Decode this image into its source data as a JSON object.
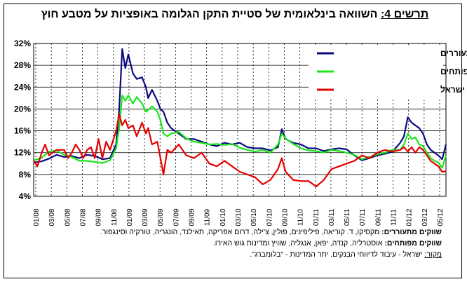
{
  "figure": {
    "label": "תרשים 4:",
    "title": "השוואה בינלאומית של סטיית התקן הגלומה באופציות על מטבע חוץ"
  },
  "chart_data": {
    "type": "line",
    "title": "השוואה בינלאומית של סטיית התקן הגלומה באופציות על מטבע חוץ",
    "ylim": [
      4,
      32
    ],
    "y_ticks": [
      "4%",
      "8%",
      "12%",
      "16%",
      "20%",
      "24%",
      "28%",
      "32%"
    ],
    "x_ticks": [
      "01/08",
      "03/08",
      "05/08",
      "07/08",
      "09/08",
      "11/08",
      "01/09",
      "03/09",
      "05/09",
      "07/09",
      "09/09",
      "11/09",
      "01/10",
      "03/10",
      "05/10",
      "07/10",
      "09/10",
      "11/10",
      "01/11",
      "03/11",
      "05/11",
      "07/11",
      "09/11",
      "11/11",
      "01/12",
      "03/12",
      "05/12"
    ],
    "x_range": [
      0,
      54
    ],
    "grid": "horizontal solid, vertical dashed",
    "legend_position": "top-right",
    "series": [
      {
        "name": "ממוצע שווקים מתעוררים",
        "color": "#0a0a80",
        "points": [
          [
            0,
            10.2
          ],
          [
            1,
            10.4
          ],
          [
            2,
            10.9
          ],
          [
            3,
            11.6
          ],
          [
            4,
            11.2
          ],
          [
            5,
            11.4
          ],
          [
            6,
            11.0
          ],
          [
            7,
            11.6
          ],
          [
            8,
            11.4
          ],
          [
            9,
            10.8
          ],
          [
            10,
            11.0
          ],
          [
            10.8,
            13.5
          ],
          [
            11.2,
            20.0
          ],
          [
            11.6,
            31.0
          ],
          [
            12.0,
            27.5
          ],
          [
            12.4,
            30.0
          ],
          [
            13.0,
            26.5
          ],
          [
            13.5,
            25.5
          ],
          [
            14.2,
            25.8
          ],
          [
            14.7,
            24.0
          ],
          [
            15.0,
            22.0
          ],
          [
            15.5,
            23.5
          ],
          [
            16.2,
            21.5
          ],
          [
            16.6,
            20.0
          ],
          [
            17.0,
            19.5
          ],
          [
            17.5,
            17.5
          ],
          [
            18.0,
            16.5
          ],
          [
            19.0,
            15.5
          ],
          [
            20.0,
            14.5
          ],
          [
            21.0,
            14.5
          ],
          [
            22.0,
            14.0
          ],
          [
            23.0,
            13.5
          ],
          [
            24.0,
            13.2
          ],
          [
            25.0,
            13.8
          ],
          [
            26.0,
            13.5
          ],
          [
            27.0,
            13.8
          ],
          [
            28.0,
            13.0
          ],
          [
            29.0,
            12.8
          ],
          [
            30.0,
            12.8
          ],
          [
            31.0,
            12.4
          ],
          [
            32.0,
            13.0
          ],
          [
            32.5,
            16.3
          ],
          [
            33.0,
            14.5
          ],
          [
            34.0,
            13.8
          ],
          [
            35.0,
            13.5
          ],
          [
            36.0,
            12.8
          ],
          [
            37.0,
            12.8
          ],
          [
            38.0,
            12.3
          ],
          [
            39.0,
            12.6
          ],
          [
            40.0,
            12.8
          ],
          [
            41.0,
            12.6
          ],
          [
            42.0,
            11.5
          ],
          [
            43.0,
            10.6
          ],
          [
            44.0,
            11.0
          ],
          [
            45.0,
            11.5
          ],
          [
            46.0,
            11.8
          ],
          [
            47.0,
            12.2
          ],
          [
            48.0,
            13.8
          ],
          [
            48.5,
            15.0
          ],
          [
            49.0,
            18.5
          ],
          [
            49.5,
            17.5
          ],
          [
            50.0,
            17.0
          ],
          [
            50.5,
            16.5
          ],
          [
            51.0,
            15.5
          ],
          [
            51.5,
            13.5
          ],
          [
            52.0,
            12.5
          ],
          [
            52.5,
            12.0
          ],
          [
            53.0,
            11.5
          ],
          [
            53.5,
            10.8
          ],
          [
            54.0,
            13.5
          ]
        ]
      },
      {
        "name": "ממוצע שווקים מפותחים",
        "color": "#19e619",
        "points": [
          [
            0,
            10.6
          ],
          [
            1,
            11.0
          ],
          [
            2,
            12.2
          ],
          [
            3,
            12.4
          ],
          [
            4,
            11.6
          ],
          [
            5,
            11.2
          ],
          [
            6,
            10.5
          ],
          [
            7,
            10.5
          ],
          [
            8,
            10.3
          ],
          [
            9,
            10.1
          ],
          [
            10,
            10.6
          ],
          [
            10.8,
            12.8
          ],
          [
            11.2,
            16.5
          ],
          [
            11.6,
            22.5
          ],
          [
            12.0,
            21.5
          ],
          [
            12.4,
            22.5
          ],
          [
            13.0,
            21.0
          ],
          [
            13.5,
            22.2
          ],
          [
            14.2,
            21.0
          ],
          [
            14.7,
            19.5
          ],
          [
            15.0,
            19.8
          ],
          [
            15.5,
            20.5
          ],
          [
            16.2,
            19.5
          ],
          [
            16.6,
            18.0
          ],
          [
            17.0,
            15.5
          ],
          [
            17.5,
            15.0
          ],
          [
            18.0,
            15.5
          ],
          [
            19.0,
            15.8
          ],
          [
            20.0,
            14.6
          ],
          [
            21.0,
            14.0
          ],
          [
            22.0,
            13.8
          ],
          [
            23.0,
            13.5
          ],
          [
            24.0,
            13.6
          ],
          [
            25.0,
            13.4
          ],
          [
            26.0,
            13.6
          ],
          [
            27.0,
            12.9
          ],
          [
            28.0,
            12.5
          ],
          [
            29.0,
            12.2
          ],
          [
            30.0,
            12.5
          ],
          [
            31.0,
            12.0
          ],
          [
            32.0,
            13.5
          ],
          [
            32.5,
            15.5
          ],
          [
            33.0,
            14.6
          ],
          [
            34.0,
            13.6
          ],
          [
            35.0,
            12.8
          ],
          [
            36.0,
            12.4
          ],
          [
            37.0,
            12.3
          ],
          [
            38.0,
            12.0
          ],
          [
            39.0,
            12.5
          ],
          [
            40.0,
            12.3
          ],
          [
            41.0,
            12.0
          ],
          [
            42.0,
            11.6
          ],
          [
            43.0,
            10.8
          ],
          [
            44.0,
            11.2
          ],
          [
            45.0,
            11.7
          ],
          [
            46.0,
            12.0
          ],
          [
            47.0,
            12.5
          ],
          [
            48.0,
            12.5
          ],
          [
            48.5,
            13.5
          ],
          [
            49.0,
            15.5
          ],
          [
            49.5,
            14.5
          ],
          [
            50.0,
            14.8
          ],
          [
            50.5,
            13.5
          ],
          [
            51.0,
            13.2
          ],
          [
            51.5,
            12.0
          ],
          [
            52.0,
            11.0
          ],
          [
            52.5,
            10.5
          ],
          [
            53.0,
            10.2
          ],
          [
            53.5,
            9.2
          ],
          [
            54.0,
            11.5
          ]
        ]
      },
      {
        "name": "סת\"ג ישראל",
        "color": "#e60000",
        "points": [
          [
            0,
            10.5
          ],
          [
            0.5,
            9.5
          ],
          [
            1,
            11.8
          ],
          [
            1.5,
            13.5
          ],
          [
            2,
            11.5
          ],
          [
            2.5,
            12.0
          ],
          [
            3,
            12.5
          ],
          [
            4,
            12.5
          ],
          [
            4.5,
            11.0
          ],
          [
            5,
            12.0
          ],
          [
            5.5,
            13.5
          ],
          [
            6,
            12.5
          ],
          [
            6.5,
            11.0
          ],
          [
            7,
            12.5
          ],
          [
            7.5,
            13.0
          ],
          [
            8,
            11.0
          ],
          [
            8.5,
            14.5
          ],
          [
            9,
            11.0
          ],
          [
            9.5,
            14.0
          ],
          [
            10,
            12.5
          ],
          [
            10.8,
            16.0
          ],
          [
            11.2,
            19.0
          ],
          [
            11.6,
            17.0
          ],
          [
            12.0,
            18.0
          ],
          [
            12.4,
            16.5
          ],
          [
            13.0,
            17.0
          ],
          [
            13.5,
            15.0
          ],
          [
            14.2,
            17.5
          ],
          [
            14.7,
            15.5
          ],
          [
            15.0,
            16.5
          ],
          [
            15.5,
            13.5
          ],
          [
            16.2,
            14.0
          ],
          [
            16.6,
            11.0
          ],
          [
            17.0,
            8.0
          ],
          [
            17.5,
            12.5
          ],
          [
            18.0,
            12.0
          ],
          [
            19.0,
            13.5
          ],
          [
            20.0,
            11.5
          ],
          [
            21.0,
            11.0
          ],
          [
            22.0,
            12.0
          ],
          [
            23.0,
            10.0
          ],
          [
            24.0,
            9.5
          ],
          [
            25.0,
            10.5
          ],
          [
            26.0,
            9.5
          ],
          [
            27.0,
            8.5
          ],
          [
            28.0,
            8.0
          ],
          [
            29.0,
            7.5
          ],
          [
            30.0,
            6.2
          ],
          [
            31.0,
            7.0
          ],
          [
            32.0,
            9.0
          ],
          [
            32.5,
            11.0
          ],
          [
            33.0,
            8.5
          ],
          [
            34.0,
            7.0
          ],
          [
            35.0,
            6.8
          ],
          [
            36.0,
            6.8
          ],
          [
            37.0,
            5.8
          ],
          [
            38.0,
            7.0
          ],
          [
            39.0,
            9.0
          ],
          [
            40.0,
            9.5
          ],
          [
            41.0,
            10.0
          ],
          [
            42.0,
            10.5
          ],
          [
            43.0,
            11.5
          ],
          [
            44.0,
            11.0
          ],
          [
            45.0,
            12.0
          ],
          [
            46.0,
            12.5
          ],
          [
            47.0,
            12.2
          ],
          [
            48.0,
            12.5
          ],
          [
            48.5,
            13.0
          ],
          [
            49.0,
            12.2
          ],
          [
            49.5,
            13.0
          ],
          [
            50.0,
            12.0
          ],
          [
            50.5,
            13.0
          ],
          [
            51.0,
            12.5
          ],
          [
            51.5,
            11.5
          ],
          [
            52.0,
            10.5
          ],
          [
            52.5,
            10.0
          ],
          [
            53.0,
            9.5
          ],
          [
            53.5,
            8.5
          ],
          [
            54.0,
            8.6
          ]
        ]
      }
    ]
  },
  "notes": {
    "emerging_label": "שווקים מתעוררים:",
    "emerging_text": "מקסיקו, ד. קוריאה, פיליפינים, פולין, צ'ילה, דרום אפריקה, תאילנד, הונגריה, טורקיה וסינגפור.",
    "developed_label": "שווקים מפותחים:",
    "developed_text": "אוסטרליה, קנדה, יפאן, אנגליה, שוויץ ומדינות גוש האירו.",
    "source_label": "מקור:",
    "source_text": "ישראל - עיבוד לדיווחי הבנקים. יתר המדינות - \"בלומברג\"."
  }
}
